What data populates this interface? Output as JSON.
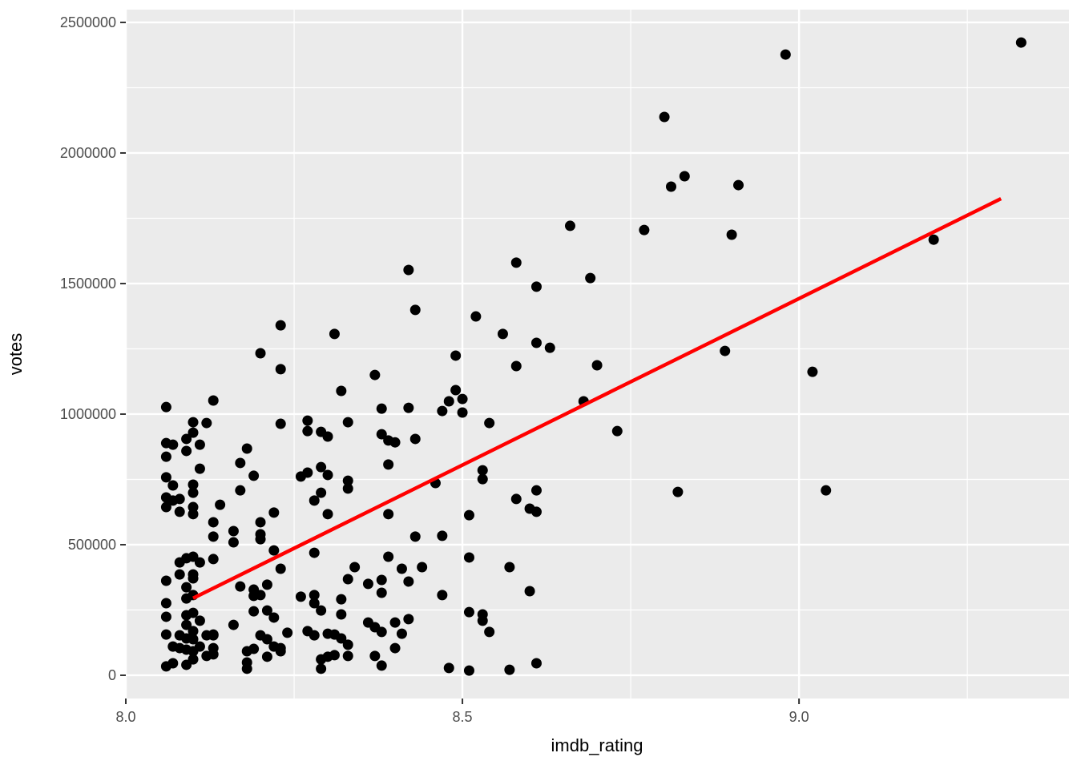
{
  "chart_data": {
    "type": "scatter",
    "title": "",
    "xlabel": "imdb_rating",
    "ylabel": "votes",
    "legend_position": "none",
    "grid": "on",
    "panel_bg": "#EBEBEB",
    "grid_color": "#FFFFFF",
    "tick_color": "#333333",
    "tick_label_color": "#4D4D4D",
    "point_color": "#000000",
    "point_radius": 6.5,
    "xlim": [
      8.0,
      9.401
    ],
    "ylim": [
      -89000,
      2549000
    ],
    "x_ticks": [
      8.0,
      8.5,
      9.0
    ],
    "x_tick_labels": [
      "8.0",
      "8.5",
      "9.0"
    ],
    "x_minor_ticks": [
      8.25,
      8.75,
      9.25
    ],
    "y_ticks": [
      0,
      500000,
      1000000,
      1500000,
      2000000,
      2500000
    ],
    "y_tick_labels": [
      "0",
      "500000",
      "1000000",
      "1500000",
      "2000000",
      "2500000"
    ],
    "y_minor_ticks": [
      250000,
      750000,
      1250000,
      1750000,
      2250000
    ],
    "trend_line": {
      "x1": 8.1,
      "y1": 295000,
      "x2": 9.3,
      "y2": 1825000,
      "color": "#FF0000",
      "width": 4.5
    },
    "points": [
      [
        8.66,
        1721000
      ],
      [
        8.98,
        2377000
      ],
      [
        8.8,
        2138000
      ],
      [
        8.83,
        1911000
      ],
      [
        8.81,
        1871000
      ],
      [
        8.91,
        1877000
      ],
      [
        8.77,
        1705000
      ],
      [
        8.9,
        1687000
      ],
      [
        9.33,
        2423000
      ],
      [
        8.23,
        1340000
      ],
      [
        8.31,
        1307000
      ],
      [
        8.2,
        1233000
      ],
      [
        8.23,
        1172000
      ],
      [
        8.32,
        1089000
      ],
      [
        8.13,
        1052000
      ],
      [
        8.06,
        1027000
      ],
      [
        8.1,
        969000
      ],
      [
        8.12,
        966000
      ],
      [
        8.23,
        963000
      ],
      [
        8.27,
        975000
      ],
      [
        8.27,
        935000
      ],
      [
        8.29,
        932000
      ],
      [
        8.3,
        914000
      ],
      [
        8.33,
        969000
      ],
      [
        8.06,
        889000
      ],
      [
        8.07,
        883000
      ],
      [
        8.09,
        905000
      ],
      [
        8.09,
        859000
      ],
      [
        8.1,
        929000
      ],
      [
        8.11,
        883000
      ],
      [
        8.06,
        837000
      ],
      [
        8.18,
        868000
      ],
      [
        8.17,
        813000
      ],
      [
        8.42,
        1552000
      ],
      [
        8.58,
        1580000
      ],
      [
        8.69,
        1521000
      ],
      [
        8.61,
        1488000
      ],
      [
        8.43,
        1399000
      ],
      [
        8.52,
        1374000
      ],
      [
        8.56,
        1307000
      ],
      [
        8.61,
        1273000
      ],
      [
        8.63,
        1254000
      ],
      [
        8.49,
        1224000
      ],
      [
        8.58,
        1184000
      ],
      [
        8.7,
        1187000
      ],
      [
        8.37,
        1150000
      ],
      [
        8.49,
        1092000
      ],
      [
        8.5,
        1058000
      ],
      [
        8.48,
        1049000
      ],
      [
        8.47,
        1012000
      ],
      [
        8.5,
        1006000
      ],
      [
        8.38,
        1021000
      ],
      [
        8.42,
        1024000
      ],
      [
        8.68,
        1049000
      ],
      [
        8.54,
        966000
      ],
      [
        8.38,
        923000
      ],
      [
        8.39,
        899000
      ],
      [
        8.4,
        892000
      ],
      [
        8.43,
        905000
      ],
      [
        8.39,
        807000
      ],
      [
        8.89,
        1242000
      ],
      [
        9.02,
        1162000
      ],
      [
        8.73,
        935000
      ],
      [
        9.2,
        1668000
      ],
      [
        8.11,
        791000
      ],
      [
        8.06,
        758000
      ],
      [
        8.07,
        727000
      ],
      [
        8.1,
        730000
      ],
      [
        8.1,
        699000
      ],
      [
        8.06,
        681000
      ],
      [
        8.07,
        669000
      ],
      [
        8.08,
        675000
      ],
      [
        8.06,
        644000
      ],
      [
        8.08,
        626000
      ],
      [
        8.1,
        644000
      ],
      [
        8.1,
        617000
      ],
      [
        8.14,
        653000
      ],
      [
        8.13,
        586000
      ],
      [
        8.13,
        531000
      ],
      [
        8.16,
        552000
      ],
      [
        8.16,
        509000
      ],
      [
        8.09,
        448000
      ],
      [
        8.1,
        454000
      ],
      [
        8.08,
        432000
      ],
      [
        8.11,
        432000
      ],
      [
        8.13,
        445000
      ],
      [
        8.08,
        386000
      ],
      [
        8.1,
        386000
      ],
      [
        8.1,
        371000
      ],
      [
        8.06,
        362000
      ],
      [
        8.09,
        337000
      ],
      [
        8.1,
        307000
      ],
      [
        8.09,
        294000
      ],
      [
        8.06,
        276000
      ],
      [
        8.06,
        224000
      ],
      [
        8.09,
        230000
      ],
      [
        8.1,
        239000
      ],
      [
        8.11,
        209000
      ],
      [
        8.06,
        156000
      ],
      [
        8.09,
        193000
      ],
      [
        8.08,
        153000
      ],
      [
        8.09,
        141000
      ],
      [
        8.1,
        138000
      ],
      [
        8.1,
        169000
      ],
      [
        8.12,
        153000
      ],
      [
        8.13,
        156000
      ],
      [
        8.13,
        153000
      ],
      [
        8.07,
        110000
      ],
      [
        8.08,
        104000
      ],
      [
        8.09,
        98000
      ],
      [
        8.1,
        92000
      ],
      [
        8.06,
        34000
      ],
      [
        8.07,
        46000
      ],
      [
        8.09,
        40000
      ],
      [
        8.1,
        61000
      ],
      [
        8.12,
        74000
      ],
      [
        8.13,
        80000
      ],
      [
        8.13,
        104000
      ],
      [
        8.11,
        110000
      ],
      [
        8.16,
        193000
      ],
      [
        8.17,
        340000
      ],
      [
        8.17,
        708000
      ],
      [
        8.19,
        764000
      ],
      [
        8.26,
        761000
      ],
      [
        8.27,
        776000
      ],
      [
        8.29,
        797000
      ],
      [
        8.3,
        767000
      ],
      [
        8.33,
        745000
      ],
      [
        8.33,
        715000
      ],
      [
        8.29,
        699000
      ],
      [
        8.28,
        669000
      ],
      [
        8.3,
        617000
      ],
      [
        8.22,
        623000
      ],
      [
        8.2,
        586000
      ],
      [
        8.2,
        540000
      ],
      [
        8.2,
        521000
      ],
      [
        8.22,
        478000
      ],
      [
        8.28,
        469000
      ],
      [
        8.23,
        408000
      ],
      [
        8.34,
        414000
      ],
      [
        8.33,
        368000
      ],
      [
        8.21,
        347000
      ],
      [
        8.19,
        328000
      ],
      [
        8.19,
        304000
      ],
      [
        8.2,
        307000
      ],
      [
        8.26,
        301000
      ],
      [
        8.28,
        307000
      ],
      [
        8.28,
        276000
      ],
      [
        8.29,
        248000
      ],
      [
        8.19,
        245000
      ],
      [
        8.21,
        248000
      ],
      [
        8.22,
        221000
      ],
      [
        8.32,
        291000
      ],
      [
        8.32,
        233000
      ],
      [
        8.27,
        169000
      ],
      [
        8.28,
        153000
      ],
      [
        8.3,
        159000
      ],
      [
        8.31,
        156000
      ],
      [
        8.32,
        141000
      ],
      [
        8.2,
        153000
      ],
      [
        8.21,
        138000
      ],
      [
        8.22,
        110000
      ],
      [
        8.23,
        92000
      ],
      [
        8.19,
        101000
      ],
      [
        8.18,
        92000
      ],
      [
        8.21,
        71000
      ],
      [
        8.23,
        104000
      ],
      [
        8.24,
        163000
      ],
      [
        8.33,
        117000
      ],
      [
        8.33,
        74000
      ],
      [
        8.31,
        77000
      ],
      [
        8.3,
        71000
      ],
      [
        8.29,
        61000
      ],
      [
        8.29,
        25000
      ],
      [
        8.18,
        49000
      ],
      [
        8.18,
        25000
      ],
      [
        8.46,
        736000
      ],
      [
        8.53,
        785000
      ],
      [
        8.53,
        751000
      ],
      [
        8.58,
        675000
      ],
      [
        8.61,
        708000
      ],
      [
        8.6,
        638000
      ],
      [
        8.61,
        626000
      ],
      [
        8.39,
        617000
      ],
      [
        8.51,
        613000
      ],
      [
        8.43,
        531000
      ],
      [
        8.47,
        534000
      ],
      [
        8.39,
        454000
      ],
      [
        8.41,
        408000
      ],
      [
        8.44,
        414000
      ],
      [
        8.36,
        350000
      ],
      [
        8.38,
        365000
      ],
      [
        8.38,
        316000
      ],
      [
        8.42,
        359000
      ],
      [
        8.47,
        307000
      ],
      [
        8.51,
        451000
      ],
      [
        8.57,
        414000
      ],
      [
        8.6,
        322000
      ],
      [
        8.51,
        242000
      ],
      [
        8.53,
        233000
      ],
      [
        8.53,
        209000
      ],
      [
        8.54,
        166000
      ],
      [
        8.36,
        202000
      ],
      [
        8.37,
        184000
      ],
      [
        8.38,
        166000
      ],
      [
        8.4,
        202000
      ],
      [
        8.42,
        215000
      ],
      [
        8.41,
        159000
      ],
      [
        8.4,
        104000
      ],
      [
        8.37,
        74000
      ],
      [
        8.38,
        37000
      ],
      [
        8.48,
        28000
      ],
      [
        8.51,
        18000
      ],
      [
        8.57,
        21000
      ],
      [
        8.61,
        46000
      ],
      [
        8.82,
        702000
      ],
      [
        9.04,
        708000
      ]
    ]
  }
}
